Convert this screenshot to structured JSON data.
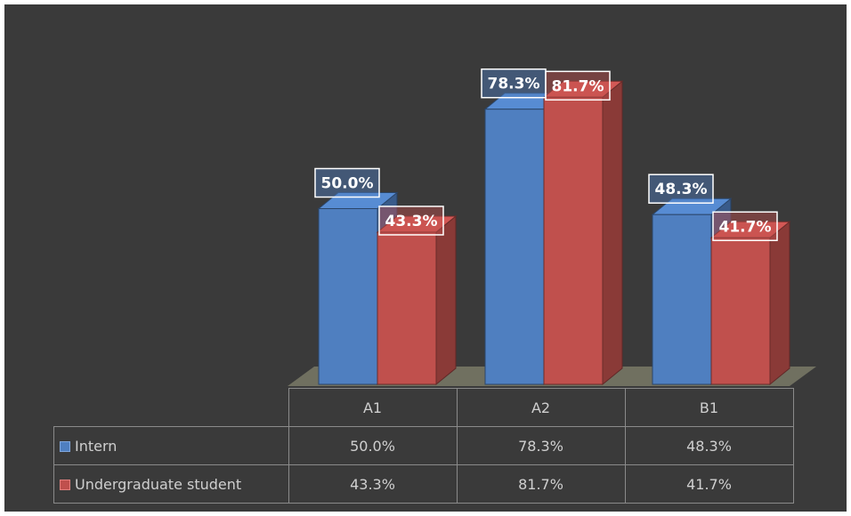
{
  "chart_data": {
    "type": "bar",
    "categories": [
      "A1",
      "A2",
      "B1"
    ],
    "series": [
      {
        "name": "Intern",
        "values": [
          50.0,
          78.3,
          48.3
        ],
        "labels": [
          "50.0%",
          "78.3%",
          "48.3%"
        ],
        "color": "#4f7fc0"
      },
      {
        "name": "Undergraduate student",
        "values": [
          43.3,
          81.7,
          41.7
        ],
        "labels": [
          "43.3%",
          "81.7%",
          "41.7%"
        ],
        "color": "#c0504d"
      }
    ],
    "ylim": [
      0,
      100
    ],
    "grid": false,
    "legend": "data-table",
    "title": "",
    "xlabel": "",
    "ylabel": ""
  },
  "colors": {
    "background": "#3a3a3a",
    "floor": "#707060",
    "label_box": "#ffffff"
  }
}
